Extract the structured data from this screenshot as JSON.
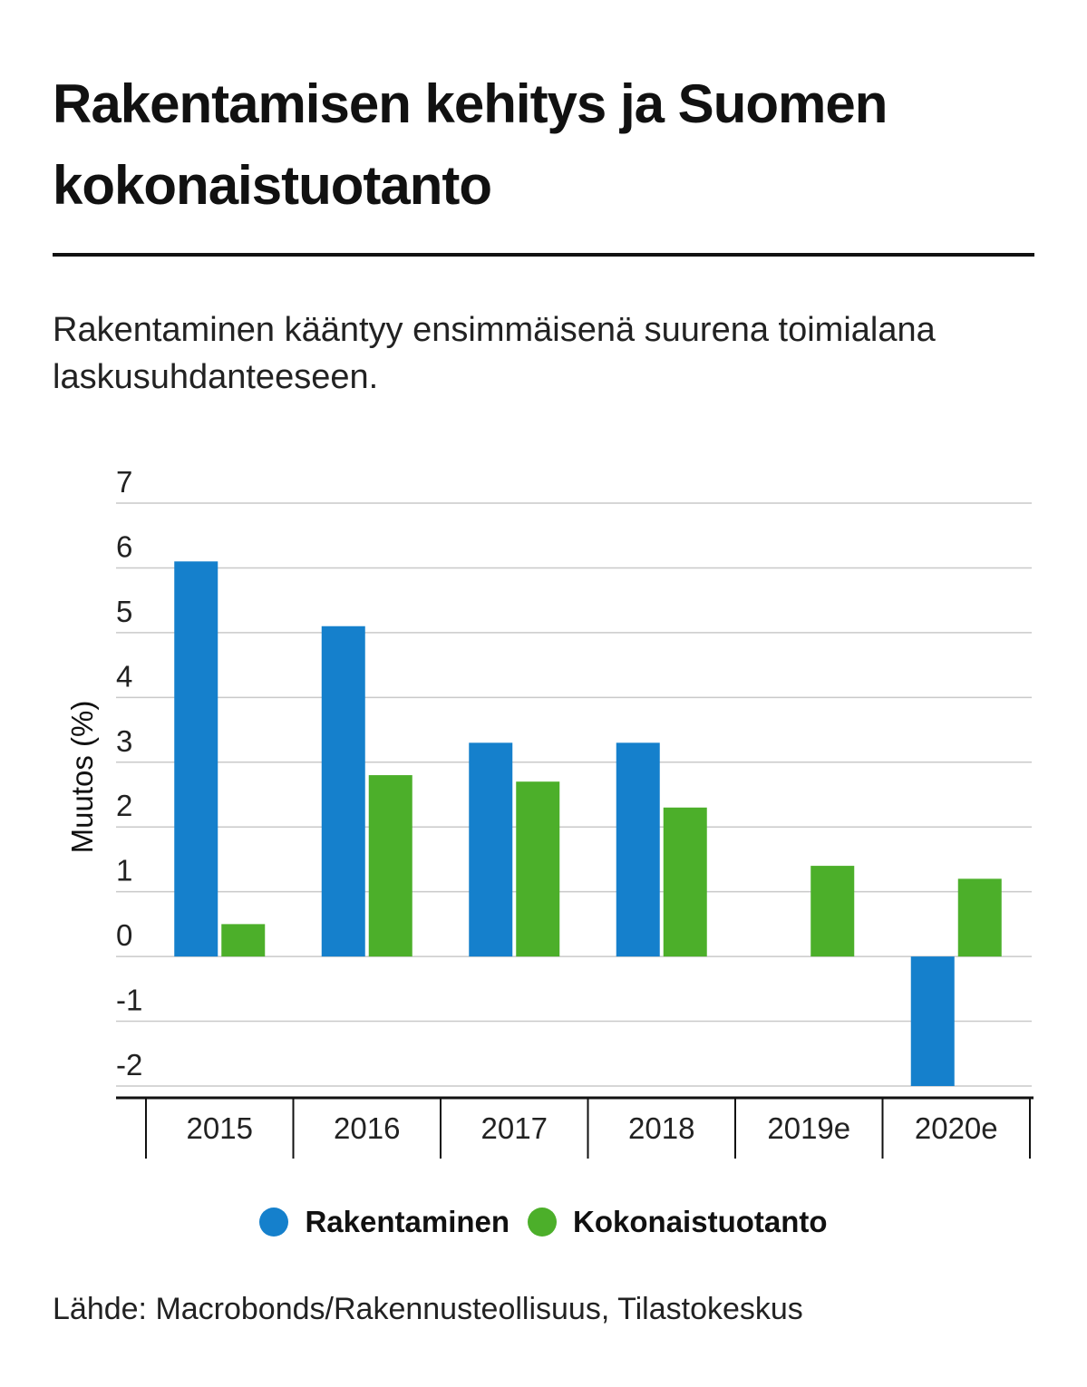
{
  "header": {
    "title": "Rakentamisen kehitys ja Suomen kokonaistuotanto",
    "subtitle": "Rakentaminen kääntyy ensimmäisenä suurena toimialana laskusuhdanteeseen."
  },
  "chart_data": {
    "type": "bar",
    "categories": [
      "2015",
      "2016",
      "2017",
      "2018",
      "2019e",
      "2020e"
    ],
    "series": [
      {
        "name": "Rakentaminen",
        "color": "#1580cc",
        "values": [
          6.1,
          5.1,
          3.3,
          3.3,
          0,
          -2.0
        ]
      },
      {
        "name": "Kokonaistuotanto",
        "color": "#4caf2a",
        "values": [
          0.5,
          2.8,
          2.7,
          2.3,
          1.4,
          1.2
        ]
      }
    ],
    "ylabel": "Muutos (%)",
    "ylim": [
      -2,
      7
    ],
    "yticks": [
      "-2",
      "-1",
      "0",
      "1",
      "2",
      "3",
      "4",
      "5",
      "6",
      "7"
    ],
    "grid": true,
    "legend_position": "bottom"
  },
  "legend": [
    {
      "label": "Rakentaminen",
      "color": "#1580cc"
    },
    {
      "label": "Kokonaistuotanto",
      "color": "#4caf2a"
    }
  ],
  "footer": {
    "source": "Lähde: Macrobonds/Rakennusteollisuus, Tilastokeskus"
  }
}
